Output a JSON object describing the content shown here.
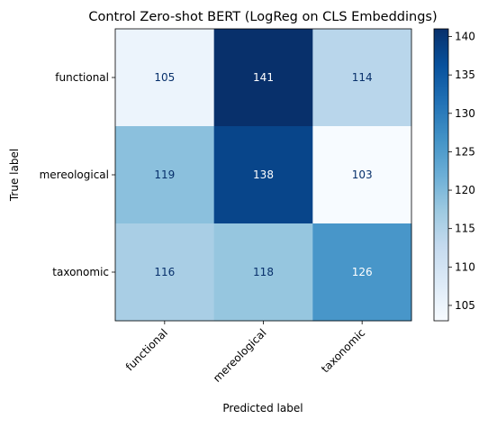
{
  "chart_data": {
    "type": "heatmap",
    "title": "Control Zero-shot BERT (LogReg on CLS Embeddings)",
    "xlabel": "Predicted label",
    "ylabel": "True label",
    "x_categories": [
      "functional",
      "mereological",
      "taxonomic"
    ],
    "y_categories": [
      "functional",
      "mereological",
      "taxonomic"
    ],
    "values": [
      [
        105,
        141,
        114
      ],
      [
        119,
        138,
        103
      ],
      [
        116,
        118,
        126
      ]
    ],
    "colormap": "Blues",
    "color_range": [
      103,
      141
    ],
    "colorbar_ticks": [
      105,
      110,
      115,
      120,
      125,
      130,
      135,
      140
    ],
    "x_tick_rotation": 45
  }
}
